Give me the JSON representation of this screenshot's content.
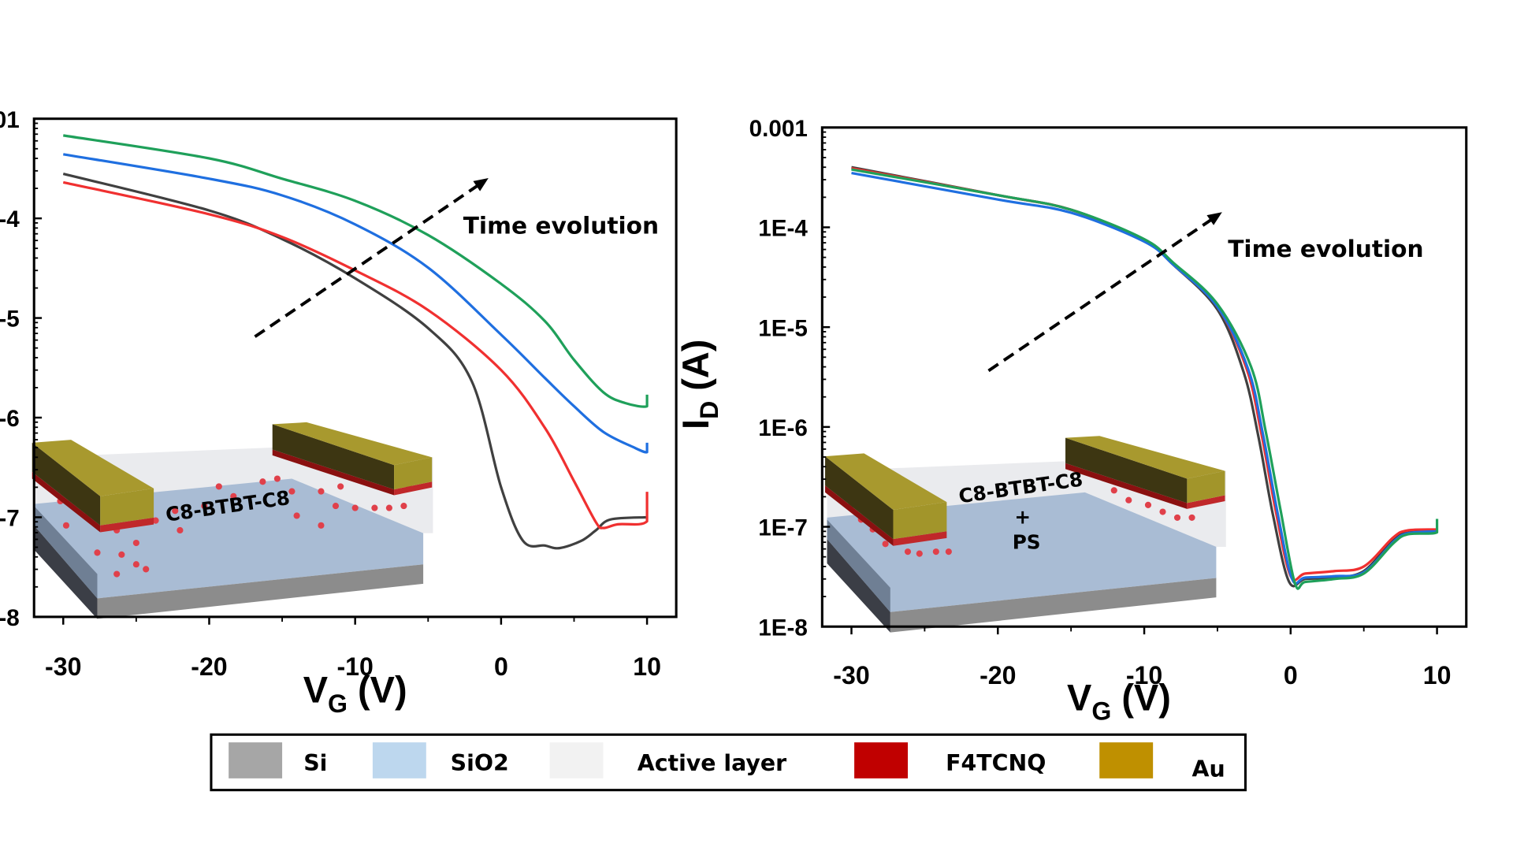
{
  "chart_data": [
    {
      "type": "line",
      "yscale": "log",
      "xlim": [
        -32,
        12
      ],
      "ylim": [
        1e-08,
        0.001
      ],
      "x_ticks": [
        "-30",
        "-20",
        "-10",
        "0",
        "10"
      ],
      "x_tick_values": [
        -30,
        -20,
        -10,
        0,
        10
      ],
      "y_tick_labels_visible": [
        "01",
        "-4",
        "-5",
        "-6",
        "-7",
        "-8"
      ],
      "y_tick_values": [
        0.001,
        0.0001,
        1e-05,
        1e-06,
        1e-07,
        1e-08
      ],
      "xlabel": {
        "main": "V",
        "sub": "G",
        "rest": " (V)"
      },
      "annotation": "Time evolution",
      "inset_label": {
        "line1": "C8-BTBT-C8"
      },
      "grid": false,
      "series": [
        {
          "color": "#404040",
          "x": [
            -30,
            -20,
            -15,
            -10,
            -5,
            -2,
            0,
            1.5,
            3,
            4,
            5.5,
            6.5,
            7.5,
            10
          ],
          "y": [
            0.00028,
            0.00012,
            6.2e-05,
            2.5e-05,
            7.9e-06,
            2.3e-06,
            2e-07,
            5.8e-08,
            5.2e-08,
            4.9e-08,
            5.8e-08,
            7.4e-08,
            9.5e-08,
            1e-07
          ]
        },
        {
          "color": "#f03030",
          "x": [
            -30,
            -20,
            -15,
            -10,
            -5,
            0,
            3,
            5,
            6.5,
            7,
            8,
            10,
            10
          ],
          "y": [
            0.00023,
            0.00011,
            6.5e-05,
            3e-05,
            1.2e-05,
            3e-06,
            7.9e-07,
            2.3e-07,
            8.9e-08,
            7.8e-08,
            8.5e-08,
            9.1e-08,
            1.8e-07
          ]
        },
        {
          "color": "#1f6fe0",
          "x": [
            -30,
            -20,
            -15,
            -10,
            -5,
            0,
            3,
            5,
            7,
            9,
            10,
            10
          ],
          "y": [
            0.00044,
            0.00025,
            0.00017,
            8.7e-05,
            3.2e-05,
            6.8e-06,
            2.5e-06,
            1.3e-06,
            7.2e-07,
            5.1e-07,
            4.5e-07,
            5.6e-07
          ]
        },
        {
          "color": "#1fa05a",
          "x": [
            -30,
            -20,
            -15,
            -10,
            -5,
            0,
            3,
            5,
            7,
            8.5,
            10,
            10
          ],
          "y": [
            0.00068,
            0.0004,
            0.00025,
            0.00015,
            6.8e-05,
            2.2e-05,
            9.3e-06,
            3.8e-06,
            1.8e-06,
            1.4e-06,
            1.3e-06,
            1.7e-06
          ]
        }
      ]
    },
    {
      "type": "line",
      "yscale": "log",
      "xlim": [
        -32,
        12
      ],
      "ylim": [
        1e-08,
        0.001
      ],
      "x_ticks": [
        "-30",
        "-20",
        "-10",
        "0",
        "10"
      ],
      "x_tick_values": [
        -30,
        -20,
        -10,
        0,
        10
      ],
      "y_tick_labels_visible": [
        "0.001",
        "1E-4",
        "1E-5",
        "1E-6",
        "1E-7",
        "1E-8"
      ],
      "y_tick_values": [
        0.001,
        0.0001,
        1e-05,
        1e-06,
        1e-07,
        1e-08
      ],
      "xlabel": {
        "main": "V",
        "sub": "G",
        "rest": " (V)"
      },
      "ylabel": {
        "main": "I",
        "sub": "D",
        "rest": " (A)"
      },
      "annotation": "Time evolution",
      "inset_label": {
        "line1": "C8-BTBT-C8",
        "line2": "+",
        "line3": "PS"
      },
      "grid": false,
      "series": [
        {
          "color": "#404040",
          "x": [
            -30,
            -20,
            -15,
            -10,
            -8,
            -5,
            -3.2,
            -2.2,
            -1.2,
            -0.1,
            1,
            3,
            5,
            7,
            8,
            10
          ],
          "y": [
            0.0004,
            0.00021,
            0.00015,
            7.4e-05,
            4.2e-05,
            1.5e-05,
            3.5e-06,
            8e-07,
            1.3e-07,
            2.8e-08,
            3e-08,
            3.1e-08,
            3.6e-08,
            7.4e-08,
            8.7e-08,
            9.1e-08
          ]
        },
        {
          "color": "#f03030",
          "x": [
            -30,
            -20,
            -15,
            -10,
            -8,
            -5,
            -3,
            -2,
            -1,
            0,
            1,
            3,
            5,
            7,
            8,
            10
          ],
          "y": [
            0.00039,
            0.00021,
            0.00015,
            7.4e-05,
            4.2e-05,
            1.6e-05,
            3.8e-06,
            8.6e-07,
            1.4e-07,
            3.2e-08,
            3.4e-08,
            3.6e-08,
            4e-08,
            7.8e-08,
            9.2e-08,
            9.4e-08
          ]
        },
        {
          "color": "#1f6fe0",
          "x": [
            -30,
            -20,
            -15,
            -10,
            -8,
            -5,
            -2.9,
            -1.9,
            -0.9,
            0.1,
            1,
            3,
            5,
            7,
            8,
            10
          ],
          "y": [
            0.00035,
            0.00019,
            0.00014,
            7.2e-05,
            4.2e-05,
            1.6e-05,
            3.8e-06,
            8.6e-07,
            1.4e-07,
            3e-08,
            3.1e-08,
            3.2e-08,
            3.5e-08,
            7e-08,
            8.6e-08,
            9e-08
          ]
        },
        {
          "color": "#1fa05a",
          "x": [
            -30,
            -20,
            -15,
            -10,
            -8,
            -5,
            -2.7,
            -1.7,
            -0.7,
            0.3,
            1,
            3,
            5,
            7,
            8,
            10,
            10
          ],
          "y": [
            0.00038,
            0.00021,
            0.00015,
            7.6e-05,
            4.4e-05,
            1.7e-05,
            4e-06,
            9e-07,
            1.5e-07,
            2.7e-08,
            2.8e-08,
            3e-08,
            3.4e-08,
            6.8e-08,
            8.4e-08,
            8.8e-08,
            1.2e-07
          ]
        }
      ]
    }
  ],
  "legend": {
    "items": [
      {
        "label": "Si",
        "color": "#a6a6a6"
      },
      {
        "label": "SiO2",
        "color": "#bdd7ee"
      },
      {
        "label": "Active layer",
        "color": "#f2f2f2"
      },
      {
        "label": "F4TCNQ",
        "color": "#c00000"
      },
      {
        "label": "Au",
        "color": "#bf9000"
      }
    ]
  }
}
